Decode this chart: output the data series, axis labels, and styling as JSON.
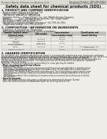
{
  "bg_color": "#f0ede8",
  "header_left": "Product Name: Lithium Ion Battery Cell",
  "header_right_line1": "Document Number: SBR-048-00010",
  "header_right_line2": "Established / Revision: Dec.7,2016",
  "title": "Safety data sheet for chemical products (SDS)",
  "section1_title": "1. PRODUCT AND COMPANY IDENTIFICATION",
  "section1_lines": [
    "· Product name: Lithium Ion Battery Cell",
    "· Product code: Cylindrical-type cell",
    "   INR18650J, INR18650L, INR18650A",
    "· Company name:     Sanyo Electric Co., Ltd., Mobile Energy Company",
    "· Address:          2001  Kaminoshima, Sumoto-City, Hyogo, Japan",
    "· Telephone number: +81-799-26-4111",
    "· Fax number: +81-799-26-4120",
    "· Emergency telephone number (Weekday) +81-799-26-3962",
    "   (Night and holiday) +81-799-26-4120"
  ],
  "section2_title": "2. COMPOSITION / INFORMATION ON INGREDIENTS",
  "section2_lines": [
    "· Substance or preparation: Preparation",
    "· Information about the chemical nature of product:"
  ],
  "col_headers": [
    "Common chemical name /\nChemical name",
    "CAS number",
    "Concentration /\nConcentration range",
    "Classification and\nhazard labeling"
  ],
  "table_rows": [
    [
      "Lithium cobalt oxide\n(LiMn/Co/Ni/O2)",
      "-",
      "30-60%",
      "-"
    ],
    [
      "Iron",
      "7439-89-6",
      "15-25%",
      "-"
    ],
    [
      "Aluminum",
      "7429-90-5",
      "3-6%",
      "-"
    ],
    [
      "Graphite\n(Solid in graphite-1)\n(Active graphite-1)",
      "77782-42-5\n(7782-42-5)",
      "10-20%",
      "-"
    ],
    [
      "Copper",
      "7440-50-8",
      "5-15%",
      "Sensitization of the skin\ngroup No.2"
    ],
    [
      "Organic electrolyte",
      "-",
      "10-20%",
      "Inflammable liquid"
    ]
  ],
  "section3_title": "3. HAZARDS IDENTIFICATION",
  "section3_para1": [
    "For the battery cell, chemical substances are stored in a hermetically sealed metal case, designed to withstand",
    "temperatures generated by electrochemical reaction during normal use. As a result, during normal use, there is no",
    "physical danger of ignition or explosion and there is no danger of hazardous materials leakage.",
    "However, if exposed to a fire, added mechanical shocks, decomposed, ambient electric which may make use,",
    "the gas release cannot be operated. The battery cell case will be breached or fire particles, hazardous",
    "materials may be released.",
    "Moreover, if heated strongly by the surrounding fire, some gas may be emitted."
  ],
  "section3_bullet1": "· Most important hazard and effects:",
  "section3_sub1": "Human health effects:",
  "section3_sub1_lines": [
    "Inhalation: The release of the electrolyte has an anesthesia action and stimulates in respiratory tract.",
    "Skin contact: The release of the electrolyte stimulates a skin. The electrolyte skin contact causes a",
    "sore and stimulation on the skin.",
    "Eye contact: The release of the electrolyte stimulates eyes. The electrolyte eye contact causes a sore",
    "and stimulation on the eye. Especially, a substance that causes a strong inflammation of the eye is",
    "contained.",
    "Environmental effects: Since a battery cell remains in the environment, do not throw out it into the",
    "environment."
  ],
  "section3_bullet2": "· Specific hazards:",
  "section3_specific": [
    "If the electrolyte contacts with water, it will generate detrimental hydrogen fluoride.",
    "Since the said electrolyte is inflammable liquid, do not bring close to fire."
  ]
}
